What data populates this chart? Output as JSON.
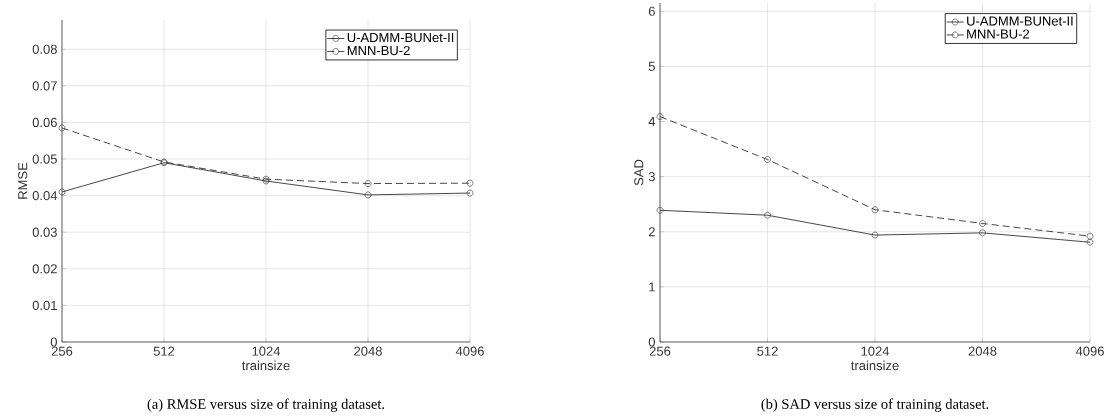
{
  "chart_data": [
    {
      "type": "line",
      "xlabel": "trainsize",
      "ylabel": "RMSE",
      "categories": [
        "256",
        "512",
        "1024",
        "2048",
        "4096"
      ],
      "ylim": [
        0,
        0.088
      ],
      "yticks": [
        0,
        0.01,
        0.02,
        0.03,
        0.04,
        0.05,
        0.06,
        0.07,
        0.08
      ],
      "grid": true,
      "legend": "top right",
      "marker": "circle",
      "series": [
        {
          "name": "U-ADMM-BUNet-II",
          "color": "#333333",
          "line_style": "solid",
          "values": [
            0.041,
            0.049,
            0.044,
            0.0402,
            0.0407
          ]
        },
        {
          "name": "MNN-BU-2",
          "color": "#333333",
          "line_style": "dashed",
          "values": [
            0.0585,
            0.0492,
            0.0445,
            0.0433,
            0.0434
          ]
        }
      ],
      "annotations": [
        "(a) RMSE versus size of training dataset."
      ]
    },
    {
      "type": "line",
      "xlabel": "trainsize",
      "ylabel": "SAD",
      "categories": [
        "256",
        "512",
        "1024",
        "2048",
        "4096"
      ],
      "ylim": [
        0,
        6.15
      ],
      "yticks": [
        0,
        1,
        2,
        3,
        4,
        5,
        6
      ],
      "grid": true,
      "legend": "top right",
      "marker": "circle",
      "series": [
        {
          "name": "U-ADMM-BUNet-II",
          "color": "#333333",
          "line_style": "solid",
          "values": [
            2.39,
            2.3,
            1.94,
            1.98,
            1.81
          ]
        },
        {
          "name": "MNN-BU-2",
          "color": "#333333",
          "line_style": "dashed",
          "values": [
            4.09,
            3.31,
            2.4,
            2.15,
            1.92
          ]
        }
      ],
      "annotations": [
        "(b) SAD versus size of training dataset."
      ]
    }
  ]
}
